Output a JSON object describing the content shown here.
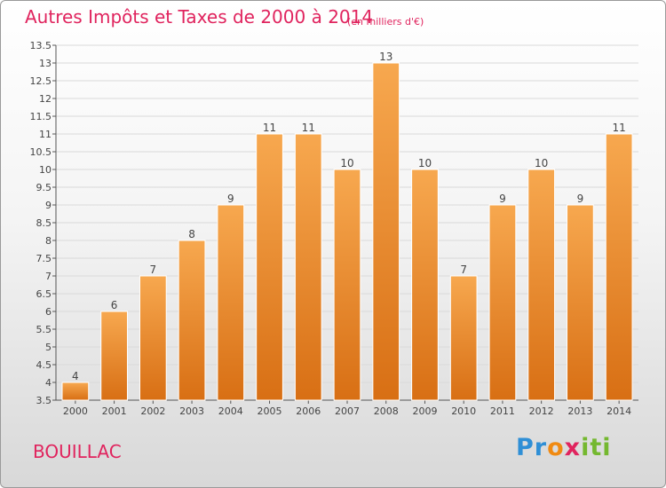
{
  "title": "Autres Impôts et Taxes de 2000 à 2014",
  "subtitle": "(en milliers d'€)",
  "commune": "BOUILLAC",
  "logo": {
    "p1": "Pr",
    "p2": "o",
    "p3": "x",
    "p4": "iti"
  },
  "colors": {
    "title": "#e0245e",
    "bar_light": "#f7a84f",
    "bar_dark": "#d86f14",
    "grid": "#d9d9d9"
  },
  "chart_data": {
    "type": "bar",
    "categories": [
      "2000",
      "2001",
      "2002",
      "2003",
      "2004",
      "2005",
      "2006",
      "2007",
      "2008",
      "2009",
      "2010",
      "2011",
      "2012",
      "2013",
      "2014"
    ],
    "values": [
      4,
      6,
      7,
      8,
      9,
      11,
      11,
      10,
      13,
      10,
      7,
      9,
      10,
      9,
      11
    ],
    "data_labels": [
      "4",
      "6",
      "7",
      "8",
      "9",
      "11",
      "11",
      "10",
      "13",
      "10",
      "7",
      "9",
      "10",
      "9",
      "11"
    ],
    "ylim": [
      3.5,
      13.5
    ],
    "yticks": [
      "3.5",
      "4",
      "4.5",
      "5",
      "5.5",
      "6",
      "6.5",
      "7",
      "7.5",
      "8",
      "8.5",
      "9",
      "9.5",
      "10",
      "10.5",
      "11",
      "11.5",
      "12",
      "12.5",
      "13",
      "13.5"
    ],
    "grid": true,
    "xlabel": "",
    "ylabel": ""
  }
}
